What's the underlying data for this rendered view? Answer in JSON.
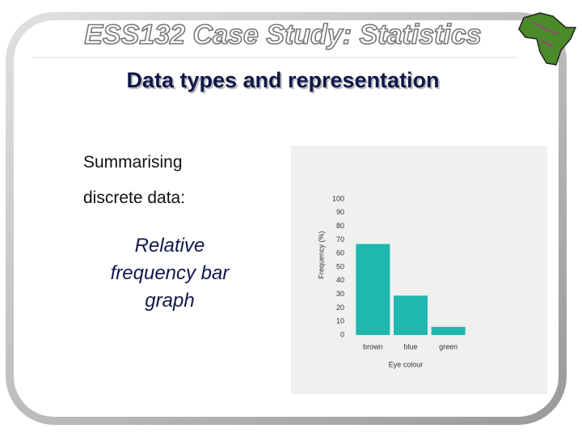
{
  "header": {
    "title": "ESS132 Case Study: Statistics",
    "subtitle": "Data types and representation"
  },
  "body": {
    "lines": [
      "Summarising",
      "discrete data:"
    ],
    "caption": [
      "Relative",
      "frequency bar",
      "graph"
    ]
  },
  "chart_data": {
    "type": "bar",
    "xlabel": "Eye colour",
    "ylabel": "Frequency (%)",
    "categories": [
      "brown",
      "blue",
      "green"
    ],
    "values": [
      67,
      29,
      6
    ],
    "color": "#1fb8b0",
    "ylim": [
      0,
      100
    ],
    "yticks": [
      0,
      10,
      20,
      30,
      40,
      50,
      60,
      70,
      80,
      90,
      100
    ],
    "grid": false
  }
}
